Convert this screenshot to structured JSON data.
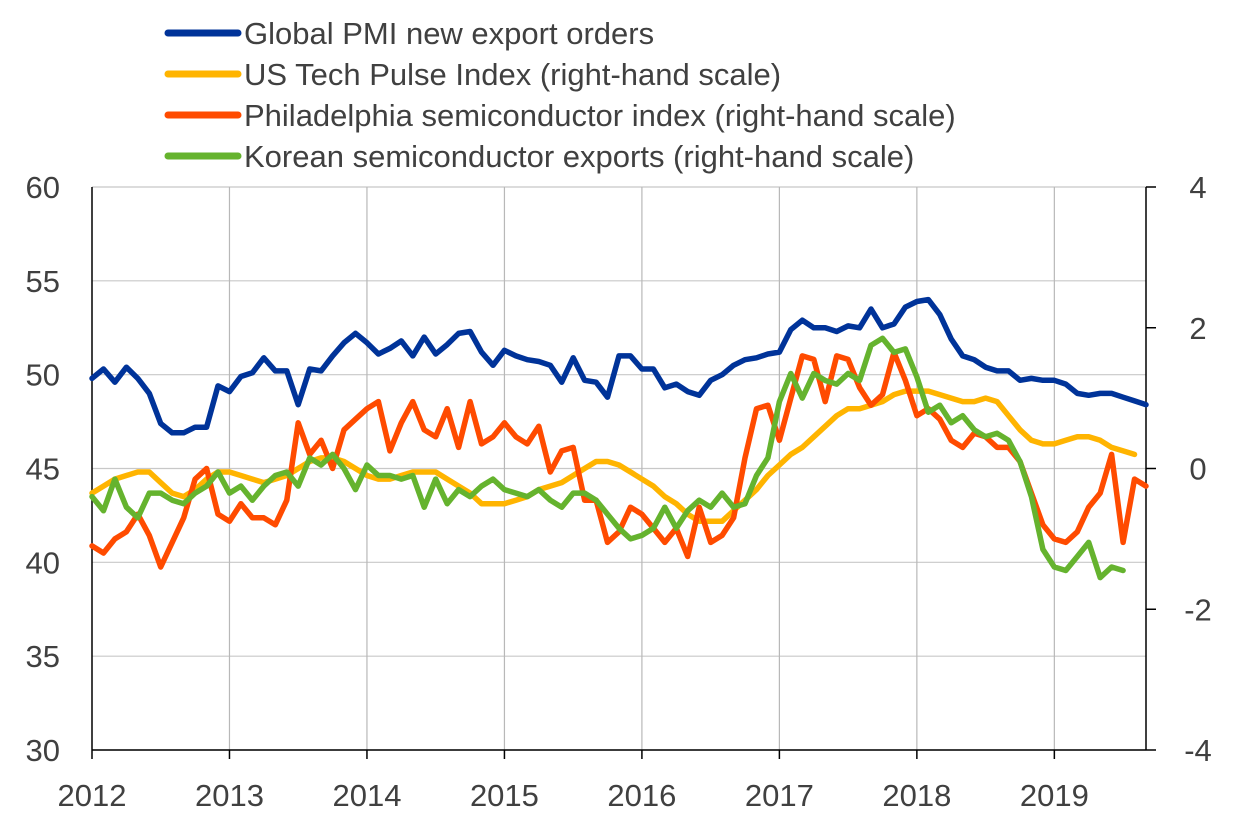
{
  "chart_data": {
    "type": "line",
    "title": "",
    "x_ticks": [
      "2012",
      "2013",
      "2014",
      "2015",
      "2016",
      "2017",
      "2018",
      "2019"
    ],
    "x_range": [
      "2012-01",
      "2019-08"
    ],
    "y_left": {
      "ticks": [
        "30",
        "35",
        "40",
        "45",
        "50",
        "55",
        "60"
      ],
      "range": [
        30,
        60
      ]
    },
    "y_right": {
      "ticks": [
        "-4",
        "-2",
        "0",
        "2",
        "4"
      ],
      "range": [
        -4,
        4
      ]
    },
    "grid": "vertical at years, horizontal at left ticks",
    "legend_position": "top",
    "series": [
      {
        "name": "Global PMI new export orders",
        "axis": "left",
        "color": "#003399",
        "start": "2012-01",
        "values": [
          49.8,
          50.3,
          49.6,
          50.4,
          49.8,
          49.0,
          47.4,
          46.9,
          46.9,
          47.2,
          47.2,
          49.4,
          49.1,
          49.9,
          50.1,
          50.9,
          50.2,
          50.2,
          48.4,
          50.3,
          50.2,
          51.0,
          51.7,
          52.2,
          51.7,
          51.1,
          51.4,
          51.8,
          51.0,
          52.0,
          51.1,
          51.6,
          52.2,
          52.3,
          51.2,
          50.5,
          51.3,
          51.0,
          50.8,
          50.7,
          50.5,
          49.6,
          50.9,
          49.7,
          49.6,
          48.8,
          51.0,
          51.0,
          50.3,
          50.3,
          49.3,
          49.5,
          49.1,
          48.9,
          49.7,
          50.0,
          50.5,
          50.8,
          50.9,
          51.1,
          51.2,
          52.4,
          52.9,
          52.5,
          52.5,
          52.3,
          52.6,
          52.5,
          53.5,
          52.5,
          52.7,
          53.6,
          53.9,
          54.0,
          53.2,
          51.9,
          51.0,
          50.8,
          50.4,
          50.2,
          50.2,
          49.7,
          49.8,
          49.7,
          49.7,
          49.5,
          49.0,
          48.9,
          49.0,
          49.0,
          48.8,
          48.6,
          48.4
        ]
      },
      {
        "name": "US Tech Pulse Index (right-hand scale)",
        "axis": "right",
        "color": "#ffb400",
        "start": "2012-01",
        "values": [
          -0.35,
          -0.25,
          -0.15,
          -0.1,
          -0.05,
          -0.05,
          -0.2,
          -0.35,
          -0.4,
          -0.3,
          -0.15,
          -0.05,
          -0.05,
          -0.1,
          -0.15,
          -0.2,
          -0.15,
          -0.1,
          0.0,
          0.1,
          0.15,
          0.15,
          0.1,
          0.0,
          -0.1,
          -0.15,
          -0.15,
          -0.1,
          -0.05,
          -0.05,
          -0.05,
          -0.15,
          -0.25,
          -0.35,
          -0.5,
          -0.5,
          -0.5,
          -0.45,
          -0.4,
          -0.3,
          -0.25,
          -0.2,
          -0.1,
          0.0,
          0.1,
          0.1,
          0.05,
          -0.05,
          -0.15,
          -0.25,
          -0.4,
          -0.5,
          -0.65,
          -0.75,
          -0.75,
          -0.75,
          -0.6,
          -0.45,
          -0.3,
          -0.1,
          0.05,
          0.2,
          0.3,
          0.45,
          0.6,
          0.75,
          0.85,
          0.85,
          0.9,
          0.95,
          1.05,
          1.1,
          1.1,
          1.1,
          1.05,
          1.0,
          0.95,
          0.95,
          1.0,
          0.95,
          0.75,
          0.55,
          0.4,
          0.35,
          0.35,
          0.4,
          0.45,
          0.45,
          0.4,
          0.3,
          0.25,
          0.2
        ]
      },
      {
        "name": "Philadelphia semiconductor index (right-hand scale)",
        "axis": "right",
        "color": "#ff4b00",
        "start": "2012-01",
        "values": [
          -1.1,
          -1.2,
          -1.0,
          -0.9,
          -0.65,
          -0.95,
          -1.4,
          -1.05,
          -0.7,
          -0.15,
          0.0,
          -0.65,
          -0.75,
          -0.5,
          -0.7,
          -0.7,
          -0.8,
          -0.45,
          0.65,
          0.2,
          0.4,
          0.0,
          0.55,
          0.7,
          0.85,
          0.95,
          0.25,
          0.65,
          0.95,
          0.55,
          0.45,
          0.85,
          0.3,
          0.95,
          0.35,
          0.45,
          0.65,
          0.45,
          0.35,
          0.6,
          -0.05,
          0.25,
          0.3,
          -0.45,
          -0.45,
          -1.05,
          -0.9,
          -0.55,
          -0.65,
          -0.85,
          -1.05,
          -0.85,
          -1.25,
          -0.55,
          -1.05,
          -0.95,
          -0.7,
          0.15,
          0.85,
          0.9,
          0.4,
          1.0,
          1.6,
          1.55,
          0.95,
          1.6,
          1.55,
          1.15,
          0.9,
          1.05,
          1.65,
          1.25,
          0.75,
          0.85,
          0.7,
          0.4,
          0.3,
          0.5,
          0.45,
          0.3,
          0.3,
          0.1,
          -0.35,
          -0.8,
          -1.0,
          -1.05,
          -0.9,
          -0.55,
          -0.35,
          0.2,
          -1.05,
          -0.15,
          -0.25
        ]
      },
      {
        "name": "Korean semiconductor exports (right-hand scale)",
        "axis": "right",
        "color": "#65b32e",
        "start": "2012-01",
        "values": [
          -0.4,
          -0.6,
          -0.15,
          -0.55,
          -0.7,
          -0.35,
          -0.35,
          -0.45,
          -0.5,
          -0.35,
          -0.25,
          -0.05,
          -0.35,
          -0.25,
          -0.45,
          -0.25,
          -0.1,
          -0.05,
          -0.25,
          0.15,
          0.05,
          0.2,
          0.0,
          -0.3,
          0.05,
          -0.1,
          -0.1,
          -0.15,
          -0.1,
          -0.55,
          -0.15,
          -0.5,
          -0.3,
          -0.4,
          -0.25,
          -0.15,
          -0.3,
          -0.35,
          -0.4,
          -0.3,
          -0.45,
          -0.55,
          -0.35,
          -0.35,
          -0.45,
          -0.65,
          -0.85,
          -1.0,
          -0.95,
          -0.85,
          -0.55,
          -0.85,
          -0.6,
          -0.45,
          -0.55,
          -0.35,
          -0.55,
          -0.5,
          -0.1,
          0.15,
          0.95,
          1.35,
          1.0,
          1.35,
          1.25,
          1.2,
          1.35,
          1.25,
          1.75,
          1.85,
          1.65,
          1.7,
          1.3,
          0.8,
          0.9,
          0.65,
          0.75,
          0.55,
          0.45,
          0.5,
          0.4,
          0.1,
          -0.4,
          -1.15,
          -1.4,
          -1.45,
          -1.25,
          -1.05,
          -1.55,
          -1.4,
          -1.45
        ]
      }
    ]
  }
}
